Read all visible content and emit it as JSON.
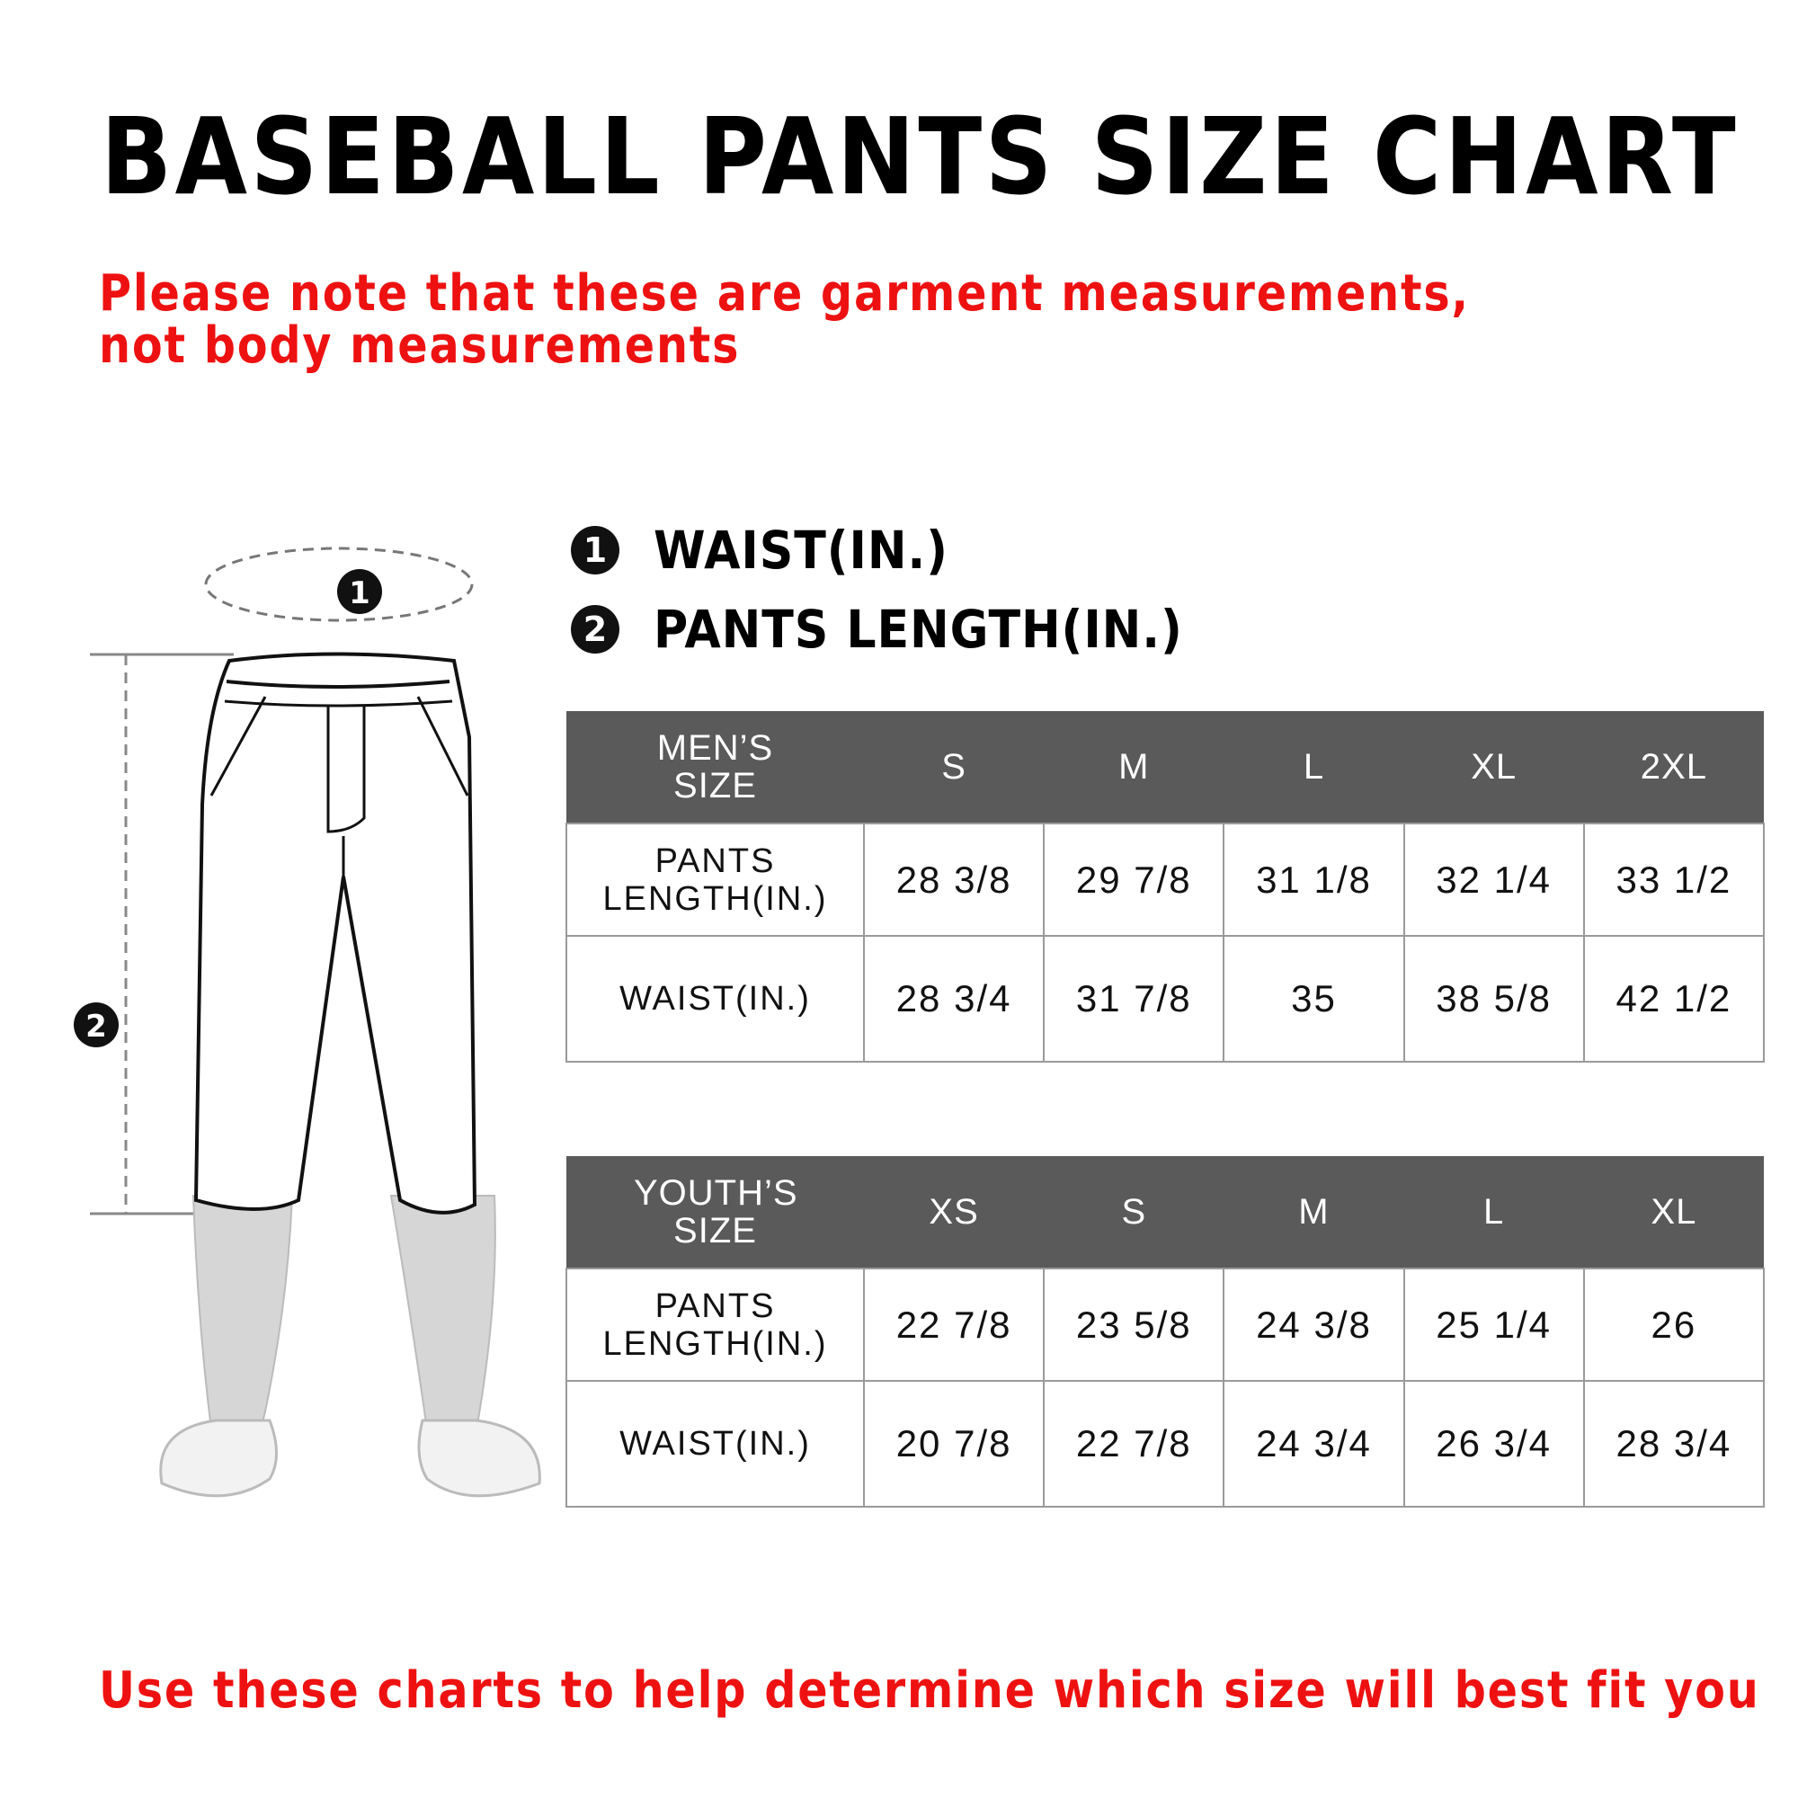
{
  "title": "BASEBALL PANTS SIZE CHART",
  "note": "Please note that these are garment measurements, not body measurements",
  "legend": [
    {
      "number": "1",
      "label": "WAIST(IN.)"
    },
    {
      "number": "2",
      "label": "PANTS LENGTH(IN.)"
    }
  ],
  "illustration": {
    "marker_1": "1",
    "marker_2": "2"
  },
  "mens_table": {
    "header": [
      "MEN’S SIZE",
      "S",
      "M",
      "L",
      "XL",
      "2XL"
    ],
    "rows": [
      {
        "label": "PANTS LENGTH(IN.)",
        "values": [
          "28 3/8",
          "29 7/8",
          "31 1/8",
          "32 1/4",
          "33 1/2"
        ]
      },
      {
        "label": "WAIST(IN.)",
        "values": [
          "28 3/4",
          "31 7/8",
          "35",
          "38 5/8",
          "42 1/2"
        ]
      }
    ]
  },
  "youth_table": {
    "header": [
      "YOUTH’S SIZE",
      "XS",
      "S",
      "M",
      "L",
      "XL"
    ],
    "rows": [
      {
        "label": "PANTS LENGTH(IN.)",
        "values": [
          "22 7/8",
          "23 5/8",
          "24 3/8",
          "25 1/4",
          "26"
        ]
      },
      {
        "label": "WAIST(IN.)",
        "values": [
          "20 7/8",
          "22 7/8",
          "24 3/4",
          "26 3/4",
          "28 3/4"
        ]
      }
    ]
  },
  "footer": "Use these charts to help determine which size will best fit you",
  "colors": {
    "accent_red": "#ee1111",
    "table_header": "#5a5a5a"
  }
}
